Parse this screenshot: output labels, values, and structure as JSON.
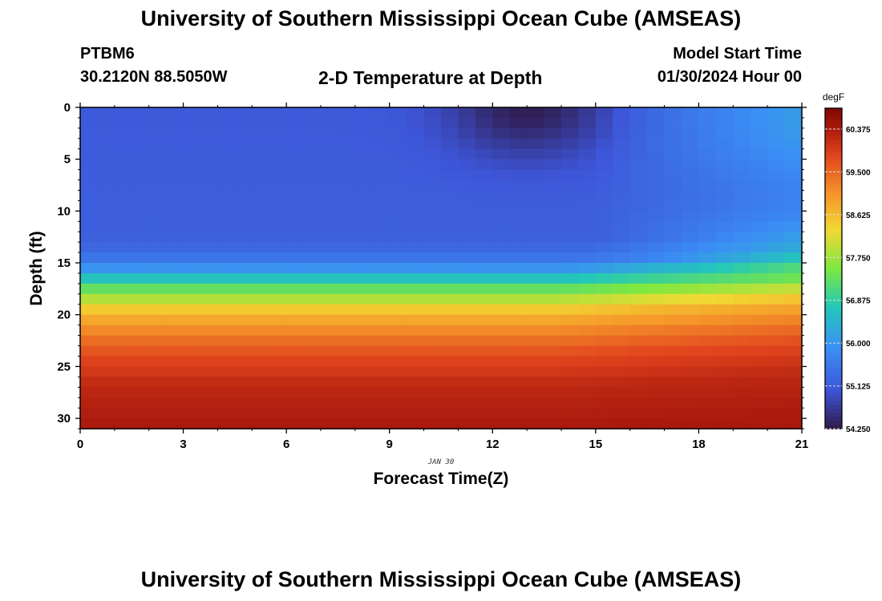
{
  "header": {
    "title": "University of Southern Mississippi Ocean Cube (AMSEAS)",
    "station_id": "PTBM6",
    "coords": "30.2120N  88.5050W",
    "plot_title": "2-D Temperature at Depth",
    "model_start_label": "Model Start Time",
    "model_start_value": "01/30/2024 Hour 00"
  },
  "footer": {
    "title": "University of Southern Mississippi Ocean Cube (AMSEAS)"
  },
  "chart_data": {
    "type": "heatmap",
    "xlabel": "Forecast Time(Z)",
    "ylabel": "Depth (ft)",
    "date_label": "JAN 30",
    "x_ticks": [
      0,
      3,
      6,
      9,
      12,
      15,
      18,
      21
    ],
    "y_ticks": [
      0,
      5,
      10,
      15,
      20,
      25,
      30
    ],
    "xlim": [
      0,
      21
    ],
    "ylim": [
      0,
      31
    ],
    "y_inverted": true,
    "units": "degF",
    "colorbar_ticks": [
      "60.375",
      "59.500",
      "58.625",
      "57.750",
      "56.875",
      "56.000",
      "55.125",
      "54.250"
    ],
    "vmin": 54.25,
    "vmax": 60.8,
    "colors": {
      "deep": "#301a4a",
      "cold": "#3d55d8",
      "cool": "#3b8ff5",
      "mid": "#22c8b8",
      "warm_mid": "#7ee840",
      "yellow": "#f2d833",
      "orange": "#f5962a",
      "warm": "#e2461e",
      "hot": "#a8180c",
      "hottest": "#7e0a02"
    },
    "profile_anchors": [
      {
        "depth_ft": 0,
        "temp_F": 55.1
      },
      {
        "depth_ft": 13,
        "temp_F": 55.2
      },
      {
        "depth_ft": 15,
        "temp_F": 55.6
      },
      {
        "depth_ft": 16,
        "temp_F": 56.3
      },
      {
        "depth_ft": 17,
        "temp_F": 57.0
      },
      {
        "depth_ft": 18,
        "temp_F": 57.6
      },
      {
        "depth_ft": 19,
        "temp_F": 58.2
      },
      {
        "depth_ft": 20,
        "temp_F": 58.7
      },
      {
        "depth_ft": 22,
        "temp_F": 59.3
      },
      {
        "depth_ft": 24,
        "temp_F": 59.8
      },
      {
        "depth_ft": 27,
        "temp_F": 60.2
      },
      {
        "depth_ft": 31,
        "temp_F": 60.4
      }
    ],
    "surface_cold_anomaly": {
      "center_hour": 13,
      "min_temp_F": 54.3,
      "depth_extent_ft": 5
    },
    "late_surface_warming": {
      "start_hour": 15,
      "max_temp_F": 56.0
    }
  }
}
